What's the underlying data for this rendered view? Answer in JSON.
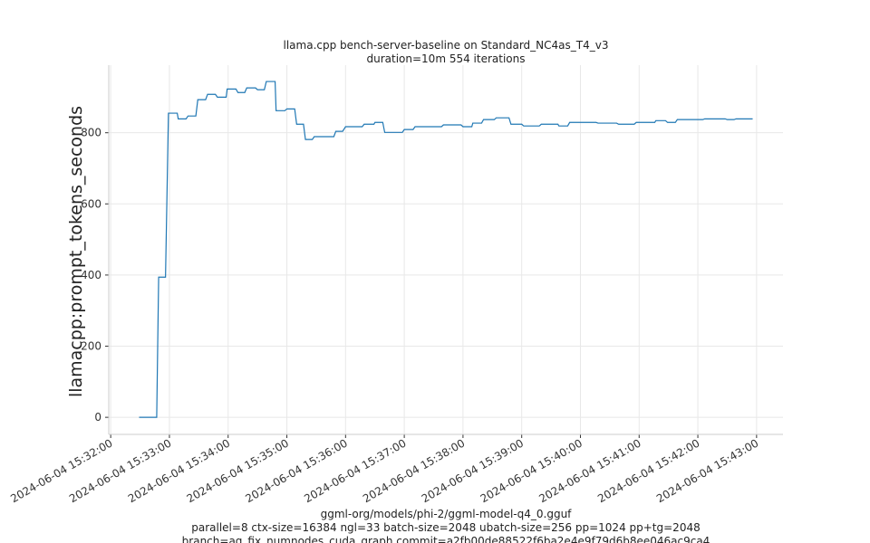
{
  "chart_data": {
    "type": "line",
    "title": "llama.cpp bench-server-baseline on Standard_NC4as_T4_v3",
    "subtitle": "duration=10m 554 iterations",
    "ylabel": "llamacpp:prompt_tokens_seconds",
    "footer": [
      "ggml-org/models/phi-2/ggml-model-q4_0.gguf",
      "parallel=8 ctx-size=16384 ngl=33 batch-size=2048 ubatch-size=256 pp=1024 pp+tg=2048",
      "branch=ag_fix_numnodes_cuda_graph commit=a2fb00de88522f6ba2e4e9f79d6b8ee046ac9ca4"
    ],
    "color": "#1f77b4",
    "grid": true,
    "xlim": [
      "2024-06-04 15:31:58",
      "2024-06-04 15:43:27"
    ],
    "xticks": [
      "2024-06-04 15:32:00",
      "2024-06-04 15:33:00",
      "2024-06-04 15:34:00",
      "2024-06-04 15:35:00",
      "2024-06-04 15:36:00",
      "2024-06-04 15:37:00",
      "2024-06-04 15:38:00",
      "2024-06-04 15:39:00",
      "2024-06-04 15:40:00",
      "2024-06-04 15:41:00",
      "2024-06-04 15:42:00",
      "2024-06-04 15:43:00"
    ],
    "ylim": [
      -48,
      990
    ],
    "yticks": [
      0,
      200,
      400,
      600,
      800
    ],
    "x": [
      "2024-06-04 15:32:29",
      "2024-06-04 15:32:47",
      "2024-06-04 15:32:49",
      "2024-06-04 15:32:56",
      "2024-06-04 15:32:59",
      "2024-06-04 15:33:08",
      "2024-06-04 15:33:09",
      "2024-06-04 15:33:17",
      "2024-06-04 15:33:19",
      "2024-06-04 15:33:27",
      "2024-06-04 15:33:29",
      "2024-06-04 15:33:37",
      "2024-06-04 15:33:39",
      "2024-06-04 15:33:47",
      "2024-06-04 15:33:49",
      "2024-06-04 15:33:58",
      "2024-06-04 15:33:59",
      "2024-06-04 15:34:08",
      "2024-06-04 15:34:10",
      "2024-06-04 15:34:17",
      "2024-06-04 15:34:19",
      "2024-06-04 15:34:28",
      "2024-06-04 15:34:30",
      "2024-06-04 15:34:37",
      "2024-06-04 15:34:39",
      "2024-06-04 15:34:48",
      "2024-06-04 15:34:49",
      "2024-06-04 15:34:58",
      "2024-06-04 15:35:00",
      "2024-06-04 15:35:08",
      "2024-06-04 15:35:10",
      "2024-06-04 15:35:17",
      "2024-06-04 15:35:19",
      "2024-06-04 15:35:26",
      "2024-06-04 15:35:28",
      "2024-06-04 15:35:48",
      "2024-06-04 15:35:50",
      "2024-06-04 15:35:57",
      "2024-06-04 15:36:00",
      "2024-06-04 15:36:17",
      "2024-06-04 15:36:19",
      "2024-06-04 15:36:29",
      "2024-06-04 15:36:30",
      "2024-06-04 15:36:38",
      "2024-06-04 15:36:40",
      "2024-06-04 15:36:58",
      "2024-06-04 15:37:00",
      "2024-06-04 15:37:09",
      "2024-06-04 15:37:11",
      "2024-06-04 15:37:38",
      "2024-06-04 15:37:40",
      "2024-06-04 15:37:58",
      "2024-06-04 15:38:00",
      "2024-06-04 15:38:09",
      "2024-06-04 15:38:10",
      "2024-06-04 15:38:19",
      "2024-06-04 15:38:21",
      "2024-06-04 15:38:32",
      "2024-06-04 15:38:34",
      "2024-06-04 15:38:47",
      "2024-06-04 15:38:49",
      "2024-06-04 15:39:00",
      "2024-06-04 15:39:02",
      "2024-06-04 15:39:18",
      "2024-06-04 15:39:20",
      "2024-06-04 15:39:37",
      "2024-06-04 15:39:38",
      "2024-06-04 15:39:47",
      "2024-06-04 15:39:49",
      "2024-06-04 15:40:16",
      "2024-06-04 15:40:18",
      "2024-06-04 15:40:37",
      "2024-06-04 15:40:39",
      "2024-06-04 15:40:55",
      "2024-06-04 15:40:57",
      "2024-06-04 15:41:16",
      "2024-06-04 15:41:17",
      "2024-06-04 15:41:27",
      "2024-06-04 15:41:29",
      "2024-06-04 15:41:37",
      "2024-06-04 15:41:39",
      "2024-06-04 15:42:05",
      "2024-06-04 15:42:07",
      "2024-06-04 15:42:28",
      "2024-06-04 15:42:30",
      "2024-06-04 15:42:37",
      "2024-06-04 15:42:39",
      "2024-06-04 15:42:56"
    ],
    "values": [
      0,
      0,
      394,
      394,
      855,
      855,
      839,
      839,
      847,
      847,
      893,
      893,
      908,
      908,
      900,
      900,
      923,
      923,
      913,
      913,
      926,
      926,
      921,
      921,
      944,
      944,
      862,
      862,
      867,
      867,
      824,
      824,
      781,
      781,
      789,
      789,
      804,
      804,
      817,
      817,
      824,
      824,
      829,
      829,
      801,
      801,
      809,
      809,
      817,
      817,
      822,
      822,
      817,
      817,
      827,
      827,
      837,
      837,
      842,
      842,
      824,
      824,
      819,
      819,
      824,
      824,
      819,
      819,
      829,
      829,
      827,
      827,
      824,
      824,
      829,
      829,
      834,
      834,
      829,
      829,
      837,
      837,
      839,
      839,
      837,
      837,
      839,
      839
    ]
  }
}
